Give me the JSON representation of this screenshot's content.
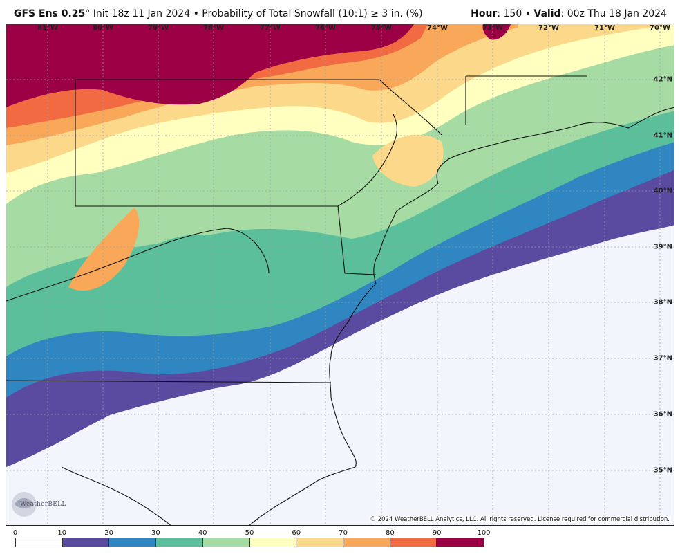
{
  "header": {
    "model": "GFS Ens 0.25",
    "degree": "°",
    "init": "Init 18z 11 Jan 2024",
    "bullet": "•",
    "product": "Probability of Total Snowfall (10:1)",
    "threshold": "≥  3 in. (%)",
    "hour_label": "Hour",
    "hour_value": ": 150",
    "valid_label": "Valid",
    "valid_value": ": 00z Thu 18 Jan 2024"
  },
  "map": {
    "longitude_labels": [
      "81°W",
      "80°W",
      "79°W",
      "78°W",
      "77°W",
      "76°W",
      "75°W",
      "74°W",
      "73°W",
      "72°W",
      "71°W",
      "70°W"
    ],
    "latitude_labels": [
      "42°N",
      "41°N",
      "40°N",
      "39°N",
      "38°N",
      "37°N",
      "36°N",
      "35°N"
    ],
    "copyright": "© 2024 WeatherBELL Analytics, LLC. All rights reserved. License required for commercial distribution.",
    "logo_name": "WeatherBELL"
  },
  "colorbar": {
    "labels": [
      "0",
      "10",
      "20",
      "30",
      "40",
      "50",
      "60",
      "70",
      "80",
      "90",
      "100"
    ],
    "colors": [
      "#ffffff",
      "#5a4aa0",
      "#2f86c0",
      "#5cbf9c",
      "#a6dca4",
      "#ffffc0",
      "#fcd98a",
      "#f9a85a",
      "#f16a42",
      "#9c0045"
    ]
  }
}
